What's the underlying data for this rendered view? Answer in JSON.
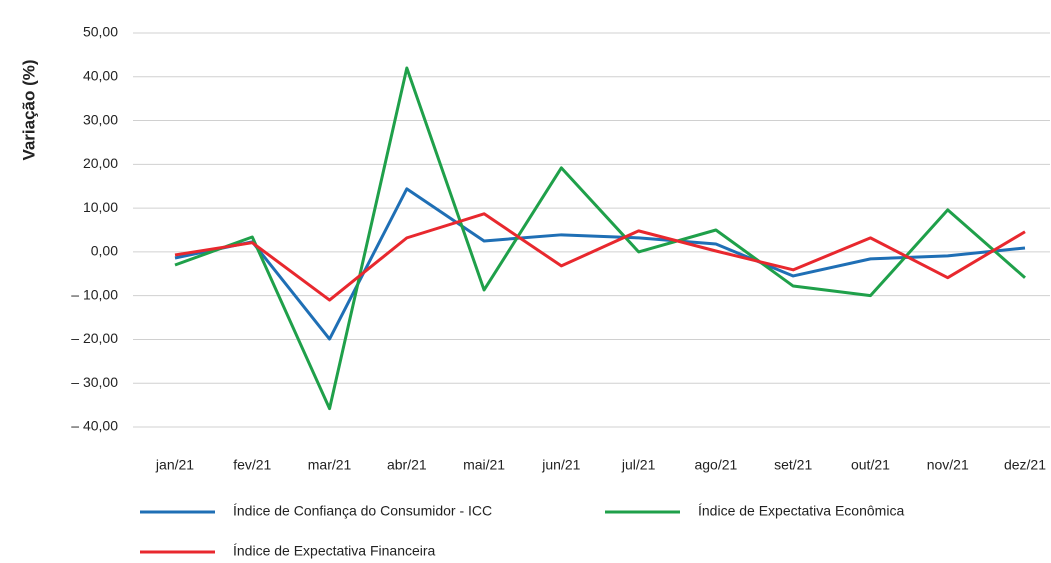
{
  "chart_data": {
    "type": "line",
    "y_label": "Variação (%)",
    "categories": [
      "jan/21",
      "fev/21",
      "mar/21",
      "abr/21",
      "mai/21",
      "jun/21",
      "jul/21",
      "ago/21",
      "set/21",
      "out/21",
      "nov/21",
      "dez/21"
    ],
    "series": [
      {
        "name": "Índice de Confiança do Consumidor - ICC",
        "color": "#1f6fb5",
        "values": [
          -1.4,
          2.3,
          -19.9,
          14.4,
          2.5,
          3.9,
          3.2,
          1.8,
          -5.5,
          -1.6,
          -0.9,
          0.9
        ]
      },
      {
        "name": "Índice de Expectativa Econômica",
        "color": "#1fa04a",
        "values": [
          -3.0,
          3.4,
          -35.8,
          42.0,
          -8.7,
          19.2,
          0.0,
          5.0,
          -7.8,
          -10.0,
          9.6,
          -5.9
        ]
      },
      {
        "name": "Índice de Expectativa Financeira",
        "color": "#e8282e",
        "values": [
          -0.7,
          2.1,
          -11.0,
          3.2,
          8.7,
          -3.2,
          4.8,
          0.2,
          -4.1,
          3.2,
          -5.9,
          4.6
        ]
      }
    ],
    "ylim": [
      -40,
      50
    ],
    "yticks": [
      {
        "value": 50,
        "label": "50,00"
      },
      {
        "value": 40,
        "label": "40,00"
      },
      {
        "value": 30,
        "label": "30,00"
      },
      {
        "value": 20,
        "label": "20,00"
      },
      {
        "value": 10,
        "label": "10,00"
      },
      {
        "value": 0,
        "label": "0,00"
      },
      {
        "value": -10,
        "label": "– 10,00"
      },
      {
        "value": -20,
        "label": "– 20,00"
      },
      {
        "value": -30,
        "label": "– 30,00"
      },
      {
        "value": -40,
        "label": "– 40,00"
      }
    ],
    "grid": true
  }
}
